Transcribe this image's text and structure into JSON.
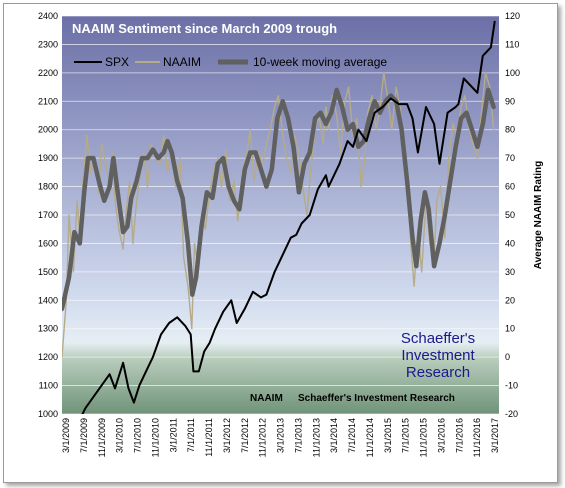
{
  "chart_data": {
    "type": "line",
    "title": "NAAIM Sentiment since March 2009 trough",
    "ylabel_right": "Average NAAIM Rating",
    "ylim_left": [
      1000,
      2400
    ],
    "ylim_right": [
      -20,
      120
    ],
    "yticks_left": [
      "1000",
      "1100",
      "1200",
      "1300",
      "1400",
      "1500",
      "1600",
      "1700",
      "1800",
      "1900",
      "2000",
      "2100",
      "2200",
      "2300",
      "2400"
    ],
    "yticks_right": [
      "-20",
      "-10",
      "0",
      "10",
      "20",
      "30",
      "40",
      "50",
      "60",
      "70",
      "80",
      "90",
      "100",
      "110",
      "120"
    ],
    "xticks": [
      "3/1/2009",
      "7/1/2009",
      "11/1/2009",
      "3/1/2010",
      "7/1/2010",
      "11/1/2010",
      "3/1/2011",
      "7/1/2011",
      "11/1/2011",
      "3/1/2012",
      "7/1/2012",
      "11/1/2012",
      "3/1/2013",
      "7/1/2013",
      "11/1/2013",
      "3/1/2014",
      "7/1/2014",
      "11/1/2014",
      "3/1/2015",
      "7/1/2015",
      "11/1/2015",
      "3/1/2016",
      "7/1/2016",
      "11/1/2016",
      "3/1/2017"
    ],
    "legend": [
      "SPX",
      "NAAIM",
      "10-week moving average"
    ],
    "legend_position": "top-left",
    "grid": true,
    "series": [
      {
        "name": "SPX",
        "axis": "left",
        "color": "#000000",
        "x": [
          2009.17,
          2009.3,
          2009.45,
          2009.6,
          2009.75,
          2009.9,
          2010.05,
          2010.15,
          2010.3,
          2010.4,
          2010.5,
          2010.6,
          2010.7,
          2010.85,
          2011.0,
          2011.15,
          2011.3,
          2011.45,
          2011.55,
          2011.6,
          2011.7,
          2011.8,
          2011.9,
          2012.0,
          2012.15,
          2012.3,
          2012.4,
          2012.55,
          2012.7,
          2012.85,
          2012.95,
          2013.1,
          2013.25,
          2013.4,
          2013.5,
          2013.6,
          2013.75,
          2013.9,
          2014.05,
          2014.1,
          2014.3,
          2014.45,
          2014.55,
          2014.65,
          2014.8,
          2014.95,
          2015.1,
          2015.25,
          2015.4,
          2015.55,
          2015.65,
          2015.75,
          2015.9,
          2016.05,
          2016.15,
          2016.3,
          2016.45,
          2016.5,
          2016.6,
          2016.75,
          2016.85,
          2016.95,
          2017.1,
          2017.17
        ],
        "y": [
          940,
          880,
          960,
          1020,
          1060,
          1100,
          1140,
          1090,
          1180,
          1090,
          1040,
          1100,
          1140,
          1200,
          1280,
          1320,
          1340,
          1310,
          1280,
          1150,
          1150,
          1220,
          1250,
          1300,
          1360,
          1400,
          1320,
          1370,
          1430,
          1410,
          1420,
          1500,
          1560,
          1620,
          1630,
          1670,
          1700,
          1790,
          1840,
          1800,
          1880,
          1960,
          1940,
          2000,
          1960,
          2060,
          2080,
          2110,
          2090,
          2090,
          2040,
          1920,
          2080,
          2020,
          1880,
          2060,
          2080,
          2090,
          2180,
          2150,
          2130,
          2260,
          2290,
          2380
        ]
      },
      {
        "name": "NAAIM",
        "axis": "right",
        "color": "#b5ab88",
        "x": [
          2009.17,
          2009.25,
          2009.3,
          2009.38,
          2009.45,
          2009.5,
          2009.55,
          2009.63,
          2009.7,
          2009.78,
          2009.85,
          2009.9,
          2009.98,
          2010.05,
          2010.1,
          2010.15,
          2010.22,
          2010.3,
          2010.35,
          2010.42,
          2010.48,
          2010.55,
          2010.62,
          2010.68,
          2010.75,
          2010.82,
          2010.9,
          2010.98,
          2011.05,
          2011.12,
          2011.2,
          2011.27,
          2011.35,
          2011.42,
          2011.5,
          2011.57,
          2011.62,
          2011.68,
          2011.75,
          2011.82,
          2011.9,
          2011.98,
          2012.05,
          2012.12,
          2012.2,
          2012.27,
          2012.35,
          2012.42,
          2012.5,
          2012.57,
          2012.65,
          2012.72,
          2012.8,
          2012.88,
          2012.95,
          2013.02,
          2013.1,
          2013.17,
          2013.25,
          2013.32,
          2013.4,
          2013.47,
          2013.55,
          2013.62,
          2013.7,
          2013.77,
          2013.85,
          2013.92,
          2014.0,
          2014.05,
          2014.1,
          2014.17,
          2014.25,
          2014.32,
          2014.4,
          2014.47,
          2014.55,
          2014.62,
          2014.7,
          2014.77,
          2014.82,
          2014.9,
          2014.98,
          2015.05,
          2015.12,
          2015.2,
          2015.27,
          2015.35,
          2015.42,
          2015.5,
          2015.57,
          2015.62,
          2015.68,
          2015.75,
          2015.82,
          2015.9,
          2015.97,
          2016.05,
          2016.1,
          2016.17,
          2016.25,
          2016.32,
          2016.4,
          2016.47,
          2016.55,
          2016.62,
          2016.7,
          2016.77,
          2016.85,
          2016.92,
          2017.0,
          2017.08,
          2017.15
        ],
        "y": [
          0,
          20,
          50,
          30,
          55,
          42,
          60,
          78,
          65,
          70,
          58,
          75,
          68,
          60,
          72,
          55,
          45,
          38,
          50,
          62,
          40,
          55,
          65,
          72,
          60,
          75,
          70,
          68,
          78,
          65,
          74,
          60,
          70,
          35,
          25,
          10,
          40,
          32,
          50,
          45,
          58,
          66,
          70,
          60,
          73,
          55,
          62,
          48,
          65,
          70,
          80,
          62,
          72,
          68,
          75,
          80,
          88,
          92,
          78,
          70,
          65,
          78,
          72,
          60,
          50,
          66,
          80,
          85,
          75,
          88,
          80,
          92,
          85,
          72,
          90,
          95,
          78,
          84,
          60,
          70,
          86,
          92,
          80,
          88,
          100,
          90,
          80,
          95,
          88,
          72,
          55,
          40,
          25,
          45,
          30,
          55,
          40,
          35,
          55,
          60,
          42,
          70,
          82,
          78,
          88,
          92,
          80,
          75,
          70,
          85,
          100,
          95,
          80
        ]
      },
      {
        "name": "10-week moving average",
        "axis": "right",
        "color": "#606060",
        "x": [
          2009.17,
          2009.3,
          2009.4,
          2009.5,
          2009.58,
          2009.65,
          2009.75,
          2009.85,
          2009.95,
          2010.05,
          2010.12,
          2010.2,
          2010.3,
          2010.38,
          2010.45,
          2010.55,
          2010.65,
          2010.75,
          2010.85,
          2010.95,
          2011.05,
          2011.12,
          2011.2,
          2011.3,
          2011.4,
          2011.5,
          2011.58,
          2011.65,
          2011.75,
          2011.85,
          2011.95,
          2012.05,
          2012.15,
          2012.25,
          2012.35,
          2012.45,
          2012.55,
          2012.65,
          2012.75,
          2012.85,
          2012.95,
          2013.05,
          2013.15,
          2013.25,
          2013.35,
          2013.45,
          2013.55,
          2013.65,
          2013.75,
          2013.85,
          2013.95,
          2014.05,
          2014.15,
          2014.25,
          2014.35,
          2014.45,
          2014.55,
          2014.65,
          2014.75,
          2014.85,
          2014.95,
          2015.05,
          2015.15,
          2015.25,
          2015.35,
          2015.45,
          2015.55,
          2015.65,
          2015.72,
          2015.8,
          2015.88,
          2015.95,
          2016.05,
          2016.15,
          2016.25,
          2016.35,
          2016.45,
          2016.55,
          2016.65,
          2016.75,
          2016.85,
          2016.95,
          2017.05,
          2017.15
        ],
        "y": [
          17,
          28,
          44,
          40,
          58,
          70,
          70,
          62,
          55,
          60,
          70,
          58,
          44,
          46,
          56,
          62,
          70,
          70,
          73,
          70,
          72,
          76,
          72,
          62,
          56,
          40,
          22,
          28,
          46,
          58,
          56,
          68,
          70,
          60,
          55,
          52,
          66,
          72,
          72,
          66,
          60,
          66,
          84,
          90,
          84,
          74,
          58,
          68,
          72,
          84,
          86,
          82,
          86,
          94,
          88,
          80,
          82,
          74,
          76,
          84,
          90,
          86,
          90,
          92,
          90,
          80,
          62,
          42,
          32,
          48,
          58,
          52,
          32,
          40,
          50,
          62,
          74,
          84,
          86,
          80,
          74,
          82,
          94,
          88
        ]
      }
    ]
  },
  "watermark": {
    "line1": "Schaeffer's",
    "line2": "Investment",
    "line3": "Research"
  },
  "footer": {
    "left": "NAAIM",
    "right": "Schaeffer's Investment Research"
  }
}
